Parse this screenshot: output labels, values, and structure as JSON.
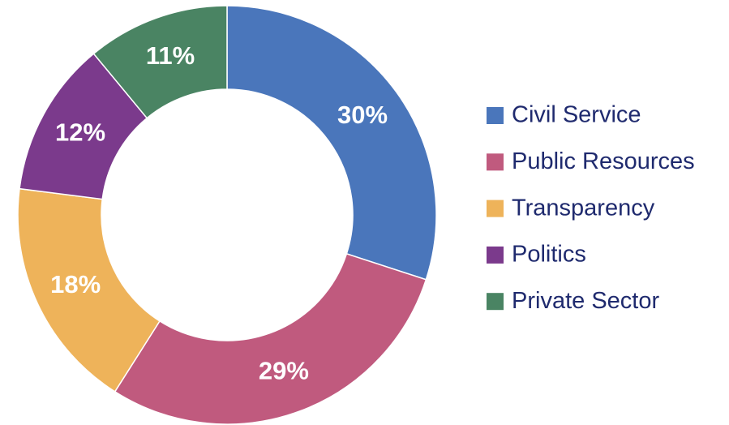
{
  "chart_data": {
    "type": "donut",
    "categories": [
      "Civil Service",
      "Public Resources",
      "Transparency",
      "Politics",
      "Private Sector"
    ],
    "values": [
      30,
      29,
      18,
      12,
      11
    ],
    "value_labels": [
      "30%",
      "29%",
      "18%",
      "12%",
      "11%"
    ],
    "colors": [
      "#4a76bb",
      "#c05a7e",
      "#eeb35a",
      "#7b3a8c",
      "#4a8463"
    ],
    "legend": "right"
  }
}
